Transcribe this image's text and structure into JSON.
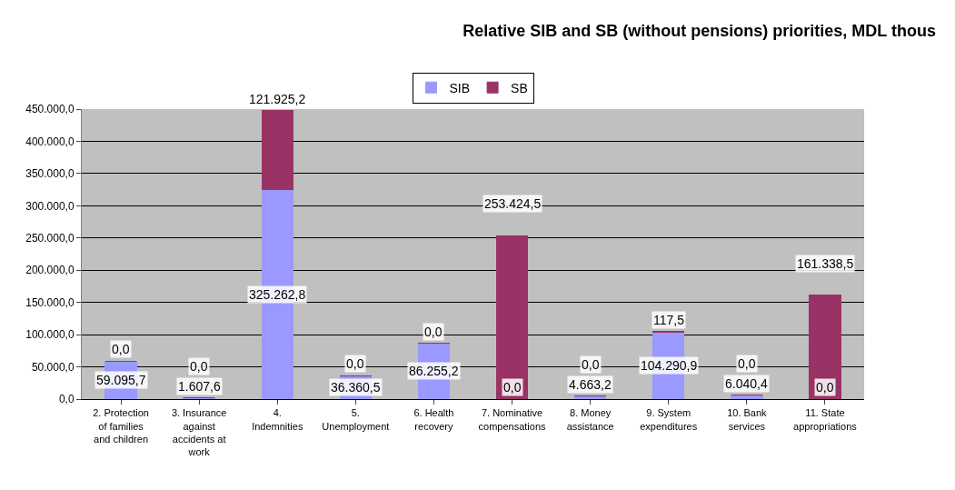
{
  "chart_data": {
    "type": "bar",
    "title": "Relative SIB and SB (without pensions) priorities, MDL thous",
    "categories": [
      "2. Protection of families and children",
      "3. Insurance against accidents at work",
      "4. Indemnities",
      "5. Unemployment",
      "6. Health recovery",
      "7. Nominative compensations",
      "8. Money assistance",
      "9. System expenditures",
      "10. Bank services",
      "11. State appropriations"
    ],
    "stacked": true,
    "series": [
      {
        "name": "SIB",
        "color": "#9999ff",
        "values": [
          59095.7,
          1607.6,
          325262.8,
          36360.5,
          86255.2,
          0,
          4663.2,
          104290.9,
          6040.4,
          0
        ],
        "value_labels": [
          "59.095,7",
          "1.607,6",
          "325.262,8",
          "36.360,5",
          "86.255,2",
          "0,0",
          "4.663,2",
          "104.290,9",
          "6.040,4",
          "0,0"
        ]
      },
      {
        "name": "SB",
        "color": "#993366",
        "values": [
          0,
          0,
          121925.2,
          0,
          0,
          253424.5,
          0,
          117.5,
          0,
          161338.5
        ],
        "value_labels": [
          "0,0",
          "0,0",
          "121.925,2",
          "0,0",
          "0,0",
          "253.424,5",
          "0,0",
          "117,5",
          "0,0",
          "161.338,5"
        ]
      }
    ],
    "ylim": [
      0,
      450000
    ],
    "yticks": [
      {
        "value": 0,
        "label": "0,0"
      },
      {
        "value": 50000,
        "label": "50.000,0"
      },
      {
        "value": 100000,
        "label": "100.000,0"
      },
      {
        "value": 150000,
        "label": "150.000,0"
      },
      {
        "value": 200000,
        "label": "200.000,0"
      },
      {
        "value": 250000,
        "label": "250.000,0"
      },
      {
        "value": 300000,
        "label": "300.000,0"
      },
      {
        "value": 350000,
        "label": "350.000,0"
      },
      {
        "value": 400000,
        "label": "400.000,0"
      },
      {
        "value": 450000,
        "label": "450.000,0"
      }
    ],
    "grid": "y",
    "legend": "top"
  }
}
